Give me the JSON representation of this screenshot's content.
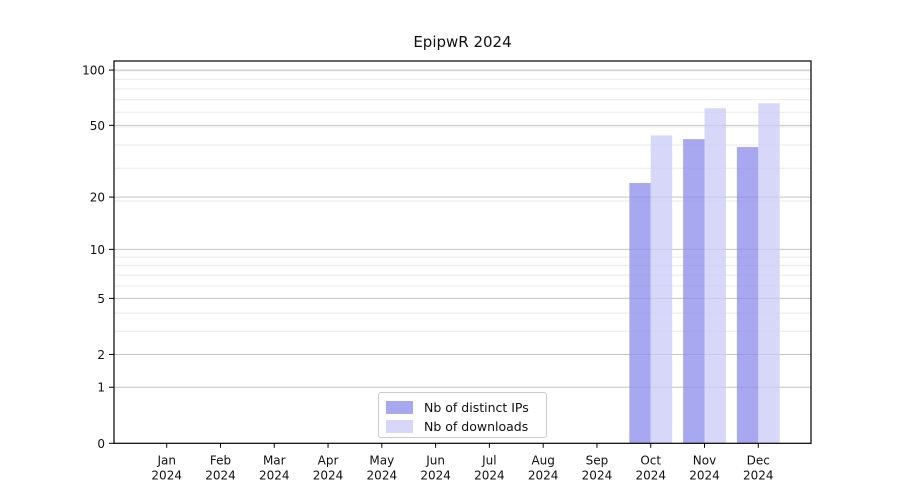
{
  "chart_data": {
    "type": "bar",
    "title": "EpipwR 2024",
    "categories": [
      "Jan",
      "Feb",
      "Mar",
      "Apr",
      "May",
      "Jun",
      "Jul",
      "Aug",
      "Sep",
      "Oct",
      "Nov",
      "Dec"
    ],
    "category_year": "2024",
    "series": [
      {
        "name": "Nb of distinct IPs",
        "color": "#9090ec",
        "values": [
          0,
          0,
          0,
          0,
          0,
          0,
          0,
          0,
          0,
          24,
          42,
          38
        ]
      },
      {
        "name": "Nb of downloads",
        "color": "#ccccf8",
        "values": [
          0,
          0,
          0,
          0,
          0,
          0,
          0,
          0,
          0,
          44,
          62,
          66
        ]
      }
    ],
    "xlabel": "",
    "ylabel": "",
    "yscale": "log1p",
    "yticks": [
      0,
      1,
      2,
      5,
      10,
      20,
      50,
      100
    ],
    "minor_gridlines": [
      3,
      4,
      6,
      7,
      8,
      9,
      19,
      29,
      39,
      49,
      59,
      69,
      79,
      89,
      99
    ],
    "ylim": [
      0,
      112
    ],
    "grid": true,
    "legend_position": "lower center",
    "colors": {
      "major_grid": "#c4c4c4",
      "minor_grid": "#eaeaea",
      "axis": "#000000",
      "text": "#111111"
    }
  }
}
